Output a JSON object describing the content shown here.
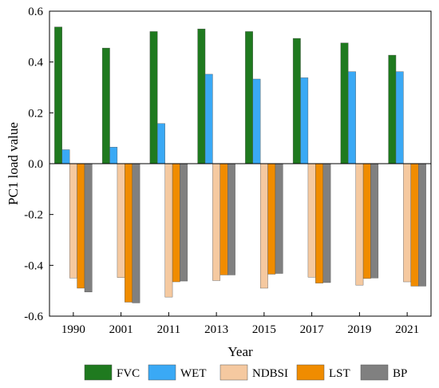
{
  "chart_data": {
    "type": "bar",
    "title": "",
    "xlabel": "Year",
    "ylabel": "PC1 load value",
    "ylim": [
      -0.6,
      0.6
    ],
    "yticks": [
      "0.6",
      "0.4",
      "0.2",
      "0.0",
      "-0.2",
      "-0.4",
      "-0.6"
    ],
    "ytick_values": [
      0.6,
      0.4,
      0.2,
      0.0,
      -0.2,
      -0.4,
      -0.6
    ],
    "categories": [
      "1990",
      "2001",
      "2011",
      "2013",
      "2015",
      "2017",
      "2019",
      "2021"
    ],
    "legend_position": "bottom",
    "grid": false,
    "series": [
      {
        "name": "FVC",
        "color": "#1f7a1f",
        "values": [
          0.538,
          0.455,
          0.52,
          0.53,
          0.52,
          0.493,
          0.475,
          0.427
        ]
      },
      {
        "name": "WET",
        "color": "#3aa9f5",
        "values": [
          0.055,
          0.065,
          0.158,
          0.352,
          0.333,
          0.338,
          0.362,
          0.362
        ]
      },
      {
        "name": "NDBSI",
        "color": "#f5c9a0",
        "values": [
          -0.45,
          -0.448,
          -0.525,
          -0.46,
          -0.49,
          -0.447,
          -0.478,
          -0.465
        ]
      },
      {
        "name": "LST",
        "color": "#f08c00",
        "values": [
          -0.49,
          -0.545,
          -0.465,
          -0.438,
          -0.435,
          -0.47,
          -0.452,
          -0.482
        ]
      },
      {
        "name": "BP",
        "color": "#808080",
        "values": [
          -0.505,
          -0.548,
          -0.462,
          -0.438,
          -0.432,
          -0.468,
          -0.45,
          -0.482
        ]
      }
    ]
  }
}
